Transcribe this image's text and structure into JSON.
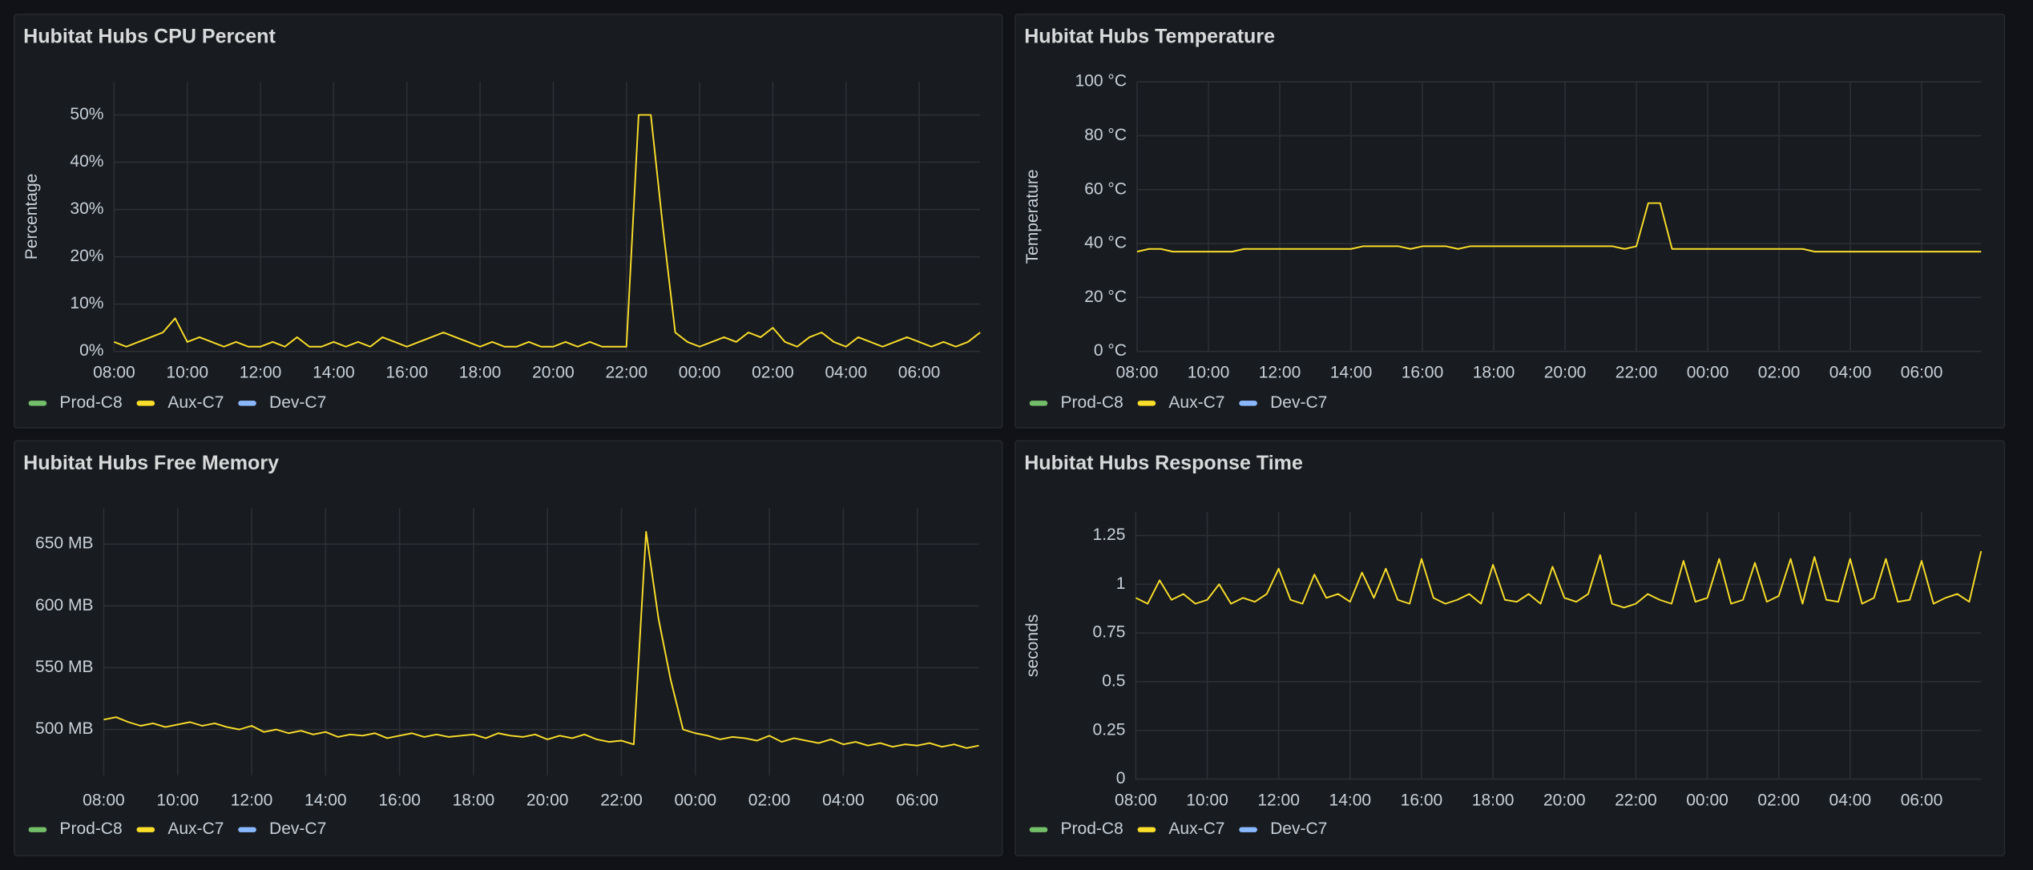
{
  "chart_data": [
    {
      "type": "line",
      "title": "Hubitat Hubs CPU Percent",
      "ylabel": "Percentage",
      "x": [
        "08:00",
        "08:20",
        "08:40",
        "09:00",
        "09:20",
        "09:40",
        "10:00",
        "10:20",
        "10:40",
        "11:00",
        "11:20",
        "11:40",
        "12:00",
        "12:20",
        "12:40",
        "13:00",
        "13:20",
        "13:40",
        "14:00",
        "14:20",
        "14:40",
        "15:00",
        "15:20",
        "15:40",
        "16:00",
        "16:20",
        "16:40",
        "17:00",
        "17:20",
        "17:40",
        "18:00",
        "18:20",
        "18:40",
        "19:00",
        "19:20",
        "19:40",
        "20:00",
        "20:20",
        "20:40",
        "21:00",
        "21:20",
        "21:40",
        "22:00",
        "22:20",
        "22:40",
        "23:00",
        "23:20",
        "23:40",
        "00:00",
        "00:20",
        "00:40",
        "01:00",
        "01:20",
        "01:40",
        "02:00",
        "02:20",
        "02:40",
        "03:00",
        "03:20",
        "03:40",
        "04:00",
        "04:20",
        "04:40",
        "05:00",
        "05:20",
        "05:40",
        "06:00",
        "06:20",
        "06:40",
        "07:00",
        "07:20",
        "07:40"
      ],
      "xticks": [
        "08:00",
        "10:00",
        "12:00",
        "14:00",
        "16:00",
        "18:00",
        "20:00",
        "22:00",
        "00:00",
        "02:00",
        "04:00",
        "06:00"
      ],
      "ylim": [
        0,
        57
      ],
      "yticks": [
        {
          "value": 0,
          "label": "0%"
        },
        {
          "value": 10,
          "label": "10%"
        },
        {
          "value": 20,
          "label": "20%"
        },
        {
          "value": 30,
          "label": "30%"
        },
        {
          "value": 40,
          "label": "40%"
        },
        {
          "value": 50,
          "label": "50%"
        }
      ],
      "grid": true,
      "series": [
        {
          "name": "Prod-C8",
          "color": "#73bf69"
        },
        {
          "name": "Aux-C7",
          "color": "#fade2a",
          "values": [
            2,
            1,
            2,
            3,
            4,
            7,
            2,
            3,
            2,
            1,
            2,
            1,
            1,
            2,
            1,
            3,
            1,
            1,
            2,
            1,
            2,
            1,
            3,
            2,
            1,
            2,
            3,
            4,
            3,
            2,
            1,
            2,
            1,
            1,
            2,
            1,
            1,
            2,
            1,
            2,
            1,
            1,
            1,
            50,
            50,
            26,
            4,
            2,
            1,
            2,
            3,
            2,
            4,
            3,
            5,
            2,
            1,
            3,
            4,
            2,
            1,
            3,
            2,
            1,
            2,
            3,
            2,
            1,
            2,
            1,
            2,
            4
          ]
        },
        {
          "name": "Dev-C7",
          "color": "#8ab8ff"
        }
      ]
    },
    {
      "type": "line",
      "title": "Hubitat Hubs Temperature",
      "ylabel": "Temperature",
      "x": [
        "08:00",
        "08:20",
        "08:40",
        "09:00",
        "09:20",
        "09:40",
        "10:00",
        "10:20",
        "10:40",
        "11:00",
        "11:20",
        "11:40",
        "12:00",
        "12:20",
        "12:40",
        "13:00",
        "13:20",
        "13:40",
        "14:00",
        "14:20",
        "14:40",
        "15:00",
        "15:20",
        "15:40",
        "16:00",
        "16:20",
        "16:40",
        "17:00",
        "17:20",
        "17:40",
        "18:00",
        "18:20",
        "18:40",
        "19:00",
        "19:20",
        "19:40",
        "20:00",
        "20:20",
        "20:40",
        "21:00",
        "21:20",
        "21:40",
        "22:00",
        "22:20",
        "22:40",
        "23:00",
        "23:20",
        "23:40",
        "00:00",
        "00:20",
        "00:40",
        "01:00",
        "01:20",
        "01:40",
        "02:00",
        "02:20",
        "02:40",
        "03:00",
        "03:20",
        "03:40",
        "04:00",
        "04:20",
        "04:40",
        "05:00",
        "05:20",
        "05:40",
        "06:00",
        "06:20",
        "06:40",
        "07:00",
        "07:20",
        "07:40"
      ],
      "xticks": [
        "08:00",
        "10:00",
        "12:00",
        "14:00",
        "16:00",
        "18:00",
        "20:00",
        "22:00",
        "00:00",
        "02:00",
        "04:00",
        "06:00"
      ],
      "ylim": [
        0,
        100
      ],
      "yticks": [
        {
          "value": 0,
          "label": "0 °C"
        },
        {
          "value": 20,
          "label": "20 °C"
        },
        {
          "value": 40,
          "label": "40 °C"
        },
        {
          "value": 60,
          "label": "60 °C"
        },
        {
          "value": 80,
          "label": "80 °C"
        },
        {
          "value": 100,
          "label": "100 °C"
        }
      ],
      "grid": true,
      "series": [
        {
          "name": "Prod-C8",
          "color": "#73bf69"
        },
        {
          "name": "Aux-C7",
          "color": "#fade2a",
          "values": [
            37,
            38,
            38,
            37,
            37,
            37,
            37,
            37,
            37,
            38,
            38,
            38,
            38,
            38,
            38,
            38,
            38,
            38,
            38,
            39,
            39,
            39,
            39,
            38,
            39,
            39,
            39,
            38,
            39,
            39,
            39,
            39,
            39,
            39,
            39,
            39,
            39,
            39,
            39,
            39,
            39,
            38,
            39,
            55,
            55,
            38,
            38,
            38,
            38,
            38,
            38,
            38,
            38,
            38,
            38,
            38,
            38,
            37,
            37,
            37,
            37,
            37,
            37,
            37,
            37,
            37,
            37,
            37,
            37,
            37,
            37,
            37
          ]
        },
        {
          "name": "Dev-C7",
          "color": "#8ab8ff"
        }
      ]
    },
    {
      "type": "line",
      "title": "Hubitat Hubs Free Memory",
      "x": [
        "08:00",
        "08:20",
        "08:40",
        "09:00",
        "09:20",
        "09:40",
        "10:00",
        "10:20",
        "10:40",
        "11:00",
        "11:20",
        "11:40",
        "12:00",
        "12:20",
        "12:40",
        "13:00",
        "13:20",
        "13:40",
        "14:00",
        "14:20",
        "14:40",
        "15:00",
        "15:20",
        "15:40",
        "16:00",
        "16:20",
        "16:40",
        "17:00",
        "17:20",
        "17:40",
        "18:00",
        "18:20",
        "18:40",
        "19:00",
        "19:20",
        "19:40",
        "20:00",
        "20:20",
        "20:40",
        "21:00",
        "21:20",
        "21:40",
        "22:00",
        "22:20",
        "22:40",
        "23:00",
        "23:20",
        "23:40",
        "00:00",
        "00:20",
        "00:40",
        "01:00",
        "01:20",
        "01:40",
        "02:00",
        "02:20",
        "02:40",
        "03:00",
        "03:20",
        "03:40",
        "04:00",
        "04:20",
        "04:40",
        "05:00",
        "05:20",
        "05:40",
        "06:00",
        "06:20",
        "06:40",
        "07:00",
        "07:20",
        "07:40"
      ],
      "xticks": [
        "08:00",
        "10:00",
        "12:00",
        "14:00",
        "16:00",
        "18:00",
        "20:00",
        "22:00",
        "00:00",
        "02:00",
        "04:00",
        "06:00"
      ],
      "ylim": [
        463,
        679
      ],
      "yticks": [
        {
          "value": 500,
          "label": "500 MB"
        },
        {
          "value": 550,
          "label": "550 MB"
        },
        {
          "value": 600,
          "label": "600 MB"
        },
        {
          "value": 650,
          "label": "650 MB"
        }
      ],
      "grid": true,
      "series": [
        {
          "name": "Prod-C8",
          "color": "#73bf69"
        },
        {
          "name": "Aux-C7",
          "color": "#fade2a",
          "values": [
            508,
            510,
            506,
            503,
            505,
            502,
            504,
            506,
            503,
            505,
            502,
            500,
            503,
            498,
            500,
            497,
            499,
            496,
            498,
            494,
            496,
            495,
            497,
            493,
            495,
            497,
            494,
            496,
            494,
            495,
            496,
            493,
            497,
            495,
            494,
            496,
            492,
            495,
            493,
            496,
            492,
            490,
            491,
            488,
            660,
            590,
            540,
            500,
            497,
            495,
            492,
            494,
            493,
            491,
            495,
            490,
            493,
            491,
            489,
            492,
            488,
            490,
            487,
            489,
            486,
            488,
            487,
            489,
            486,
            488,
            485,
            487
          ]
        },
        {
          "name": "Dev-C7",
          "color": "#8ab8ff"
        }
      ]
    },
    {
      "type": "line",
      "title": "Hubitat Hubs Response Time",
      "ylabel": "seconds",
      "x": [
        "08:00",
        "08:20",
        "08:40",
        "09:00",
        "09:20",
        "09:40",
        "10:00",
        "10:20",
        "10:40",
        "11:00",
        "11:20",
        "11:40",
        "12:00",
        "12:20",
        "12:40",
        "13:00",
        "13:20",
        "13:40",
        "14:00",
        "14:20",
        "14:40",
        "15:00",
        "15:20",
        "15:40",
        "16:00",
        "16:20",
        "16:40",
        "17:00",
        "17:20",
        "17:40",
        "18:00",
        "18:20",
        "18:40",
        "19:00",
        "19:20",
        "19:40",
        "20:00",
        "20:20",
        "20:40",
        "21:00",
        "21:20",
        "21:40",
        "22:00",
        "22:20",
        "22:40",
        "23:00",
        "23:20",
        "23:40",
        "00:00",
        "00:20",
        "00:40",
        "01:00",
        "01:20",
        "01:40",
        "02:00",
        "02:20",
        "02:40",
        "03:00",
        "03:20",
        "03:40",
        "04:00",
        "04:20",
        "04:40",
        "05:00",
        "05:20",
        "05:40",
        "06:00",
        "06:20",
        "06:40",
        "07:00",
        "07:20",
        "07:40"
      ],
      "xticks": [
        "08:00",
        "10:00",
        "12:00",
        "14:00",
        "16:00",
        "18:00",
        "20:00",
        "22:00",
        "00:00",
        "02:00",
        "04:00",
        "06:00"
      ],
      "ylim": [
        0,
        1.37
      ],
      "yticks": [
        0,
        0.25,
        0.5,
        0.75,
        1,
        1.25
      ],
      "grid": true,
      "series": [
        {
          "name": "Prod-C8",
          "color": "#73bf69"
        },
        {
          "name": "Aux-C7",
          "color": "#fade2a",
          "values": [
            0.93,
            0.9,
            1.02,
            0.92,
            0.95,
            0.9,
            0.92,
            1.0,
            0.9,
            0.93,
            0.91,
            0.95,
            1.08,
            0.92,
            0.9,
            1.05,
            0.93,
            0.95,
            0.91,
            1.06,
            0.93,
            1.08,
            0.92,
            0.9,
            1.13,
            0.93,
            0.9,
            0.92,
            0.95,
            0.9,
            1.1,
            0.92,
            0.91,
            0.95,
            0.9,
            1.09,
            0.93,
            0.91,
            0.95,
            1.15,
            0.9,
            0.88,
            0.9,
            0.95,
            0.92,
            0.9,
            1.12,
            0.91,
            0.93,
            1.13,
            0.9,
            0.92,
            1.11,
            0.91,
            0.94,
            1.13,
            0.9,
            1.14,
            0.92,
            0.91,
            1.13,
            0.9,
            0.93,
            1.13,
            0.91,
            0.92,
            1.12,
            0.9,
            0.93,
            0.95,
            0.91,
            1.17
          ]
        },
        {
          "name": "Dev-C7",
          "color": "#8ab8ff"
        }
      ]
    }
  ]
}
